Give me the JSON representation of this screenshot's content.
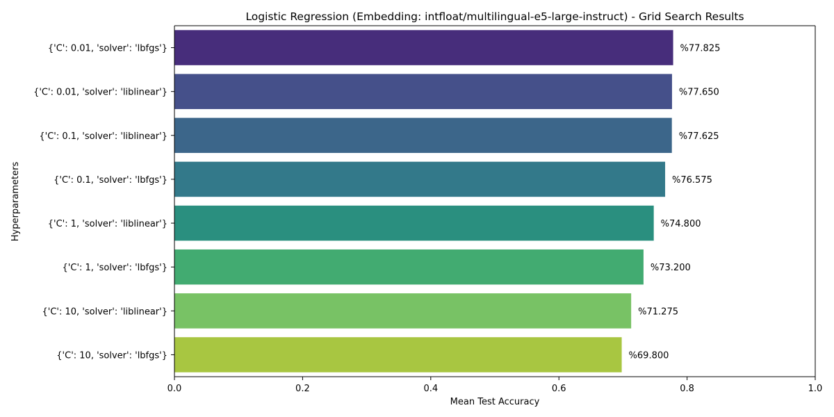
{
  "chart_data": {
    "type": "bar",
    "orientation": "horizontal",
    "title": "Logistic Regression (Embedding: intfloat/multilingual-e5-large-instruct) - Grid Search Results",
    "xlabel": "Mean Test Accuracy",
    "ylabel": "Hyperparameters",
    "xlim": [
      0,
      1.0
    ],
    "xticks": [
      0.0,
      0.2,
      0.4,
      0.6,
      0.8,
      1.0
    ],
    "xtick_labels": [
      "0.0",
      "0.2",
      "0.4",
      "0.6",
      "0.8",
      "1.0"
    ],
    "grid": false,
    "categories": [
      "{'C': 0.01, 'solver': 'lbfgs'}",
      "{'C': 0.01, 'solver': 'liblinear'}",
      "{'C': 0.1, 'solver': 'liblinear'}",
      "{'C': 0.1, 'solver': 'lbfgs'}",
      "{'C': 1, 'solver': 'liblinear'}",
      "{'C': 1, 'solver': 'lbfgs'}",
      "{'C': 10, 'solver': 'liblinear'}",
      "{'C': 10, 'solver': 'lbfgs'}"
    ],
    "values": [
      0.77825,
      0.7765,
      0.77625,
      0.76575,
      0.748,
      0.732,
      0.71275,
      0.698
    ],
    "value_labels": [
      "%77.825",
      "%77.650",
      "%77.625",
      "%76.575",
      "%74.800",
      "%73.200",
      "%71.275",
      "%69.800"
    ],
    "colors": [
      "#472d7b",
      "#45508a",
      "#3c668a",
      "#33798a",
      "#2a8f7f",
      "#42ab71",
      "#78c265",
      "#a8c641"
    ]
  }
}
